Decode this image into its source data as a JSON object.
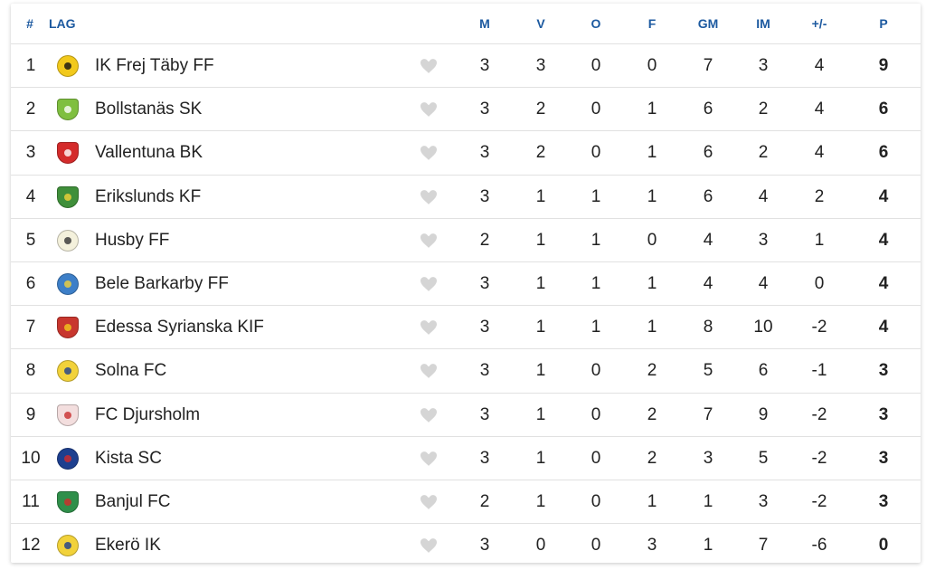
{
  "header": {
    "rank": "#",
    "team": "LAG",
    "played": "M",
    "wins": "V",
    "draws": "O",
    "losses": "F",
    "goals_for": "GM",
    "goals_against": "IM",
    "goal_diff": "+/-",
    "points": "P"
  },
  "rows": [
    {
      "rank": "1",
      "team": "IK Frej Täby FF",
      "m": "3",
      "v": "3",
      "o": "0",
      "f": "0",
      "gm": "7",
      "im": "3",
      "gd": "4",
      "p": "9",
      "logo_color": "#f2c91b",
      "logo_fg": "#111111",
      "logo_shape": "circle"
    },
    {
      "rank": "2",
      "team": "Bollstanäs SK",
      "m": "3",
      "v": "2",
      "o": "0",
      "f": "1",
      "gm": "6",
      "im": "2",
      "gd": "4",
      "p": "6",
      "logo_color": "#7fbf3f",
      "logo_fg": "#ffffff",
      "logo_shape": "shield"
    },
    {
      "rank": "3",
      "team": "Vallentuna BK",
      "m": "3",
      "v": "2",
      "o": "0",
      "f": "1",
      "gm": "6",
      "im": "2",
      "gd": "4",
      "p": "6",
      "logo_color": "#d42b2b",
      "logo_fg": "#ffffff",
      "logo_shape": "shield"
    },
    {
      "rank": "4",
      "team": "Erikslunds KF",
      "m": "3",
      "v": "1",
      "o": "1",
      "f": "1",
      "gm": "6",
      "im": "4",
      "gd": "2",
      "p": "4",
      "logo_color": "#3f8f3a",
      "logo_fg": "#f2d23a",
      "logo_shape": "shield"
    },
    {
      "rank": "5",
      "team": "Husby FF",
      "m": "2",
      "v": "1",
      "o": "1",
      "f": "0",
      "gm": "4",
      "im": "3",
      "gd": "1",
      "p": "4",
      "logo_color": "#f4f1dc",
      "logo_fg": "#333333",
      "logo_shape": "circle"
    },
    {
      "rank": "6",
      "team": "Bele Barkarby FF",
      "m": "3",
      "v": "1",
      "o": "1",
      "f": "1",
      "gm": "4",
      "im": "4",
      "gd": "0",
      "p": "4",
      "logo_color": "#3d7fc8",
      "logo_fg": "#f2d23a",
      "logo_shape": "circle"
    },
    {
      "rank": "7",
      "team": "Edessa Syrianska KIF",
      "m": "3",
      "v": "1",
      "o": "1",
      "f": "1",
      "gm": "8",
      "im": "10",
      "gd": "-2",
      "p": "4",
      "logo_color": "#c8362e",
      "logo_fg": "#f2c91b",
      "logo_shape": "shield"
    },
    {
      "rank": "8",
      "team": "Solna FC",
      "m": "3",
      "v": "1",
      "o": "0",
      "f": "2",
      "gm": "5",
      "im": "6",
      "gd": "-1",
      "p": "3",
      "logo_color": "#f2d23a",
      "logo_fg": "#1d3f8f",
      "logo_shape": "circle"
    },
    {
      "rank": "9",
      "team": "FC Djursholm",
      "m": "3",
      "v": "1",
      "o": "0",
      "f": "2",
      "gm": "7",
      "im": "9",
      "gd": "-2",
      "p": "3",
      "logo_color": "#f3dede",
      "logo_fg": "#c82d2d",
      "logo_shape": "shield"
    },
    {
      "rank": "10",
      "team": "Kista SC",
      "m": "3",
      "v": "1",
      "o": "0",
      "f": "2",
      "gm": "3",
      "im": "5",
      "gd": "-2",
      "p": "3",
      "logo_color": "#1d3f8f",
      "logo_fg": "#d42b2b",
      "logo_shape": "circle"
    },
    {
      "rank": "11",
      "team": "Banjul FC",
      "m": "2",
      "v": "1",
      "o": "0",
      "f": "1",
      "gm": "1",
      "im": "3",
      "gd": "-2",
      "p": "3",
      "logo_color": "#2f8f4a",
      "logo_fg": "#d42b2b",
      "logo_shape": "shield"
    },
    {
      "rank": "12",
      "team": "Ekerö IK",
      "m": "3",
      "v": "0",
      "o": "0",
      "f": "3",
      "gm": "1",
      "im": "7",
      "gd": "-6",
      "p": "0",
      "logo_color": "#f2d23a",
      "logo_fg": "#1d3f8f",
      "logo_shape": "circle"
    }
  ],
  "colors": {
    "header_text": "#1d5aa0",
    "heart": "#d5d5d5",
    "divider": "#e1e1e1"
  },
  "icons": {
    "favorite": "heart-icon",
    "team_logo": "team-logo-icon"
  }
}
